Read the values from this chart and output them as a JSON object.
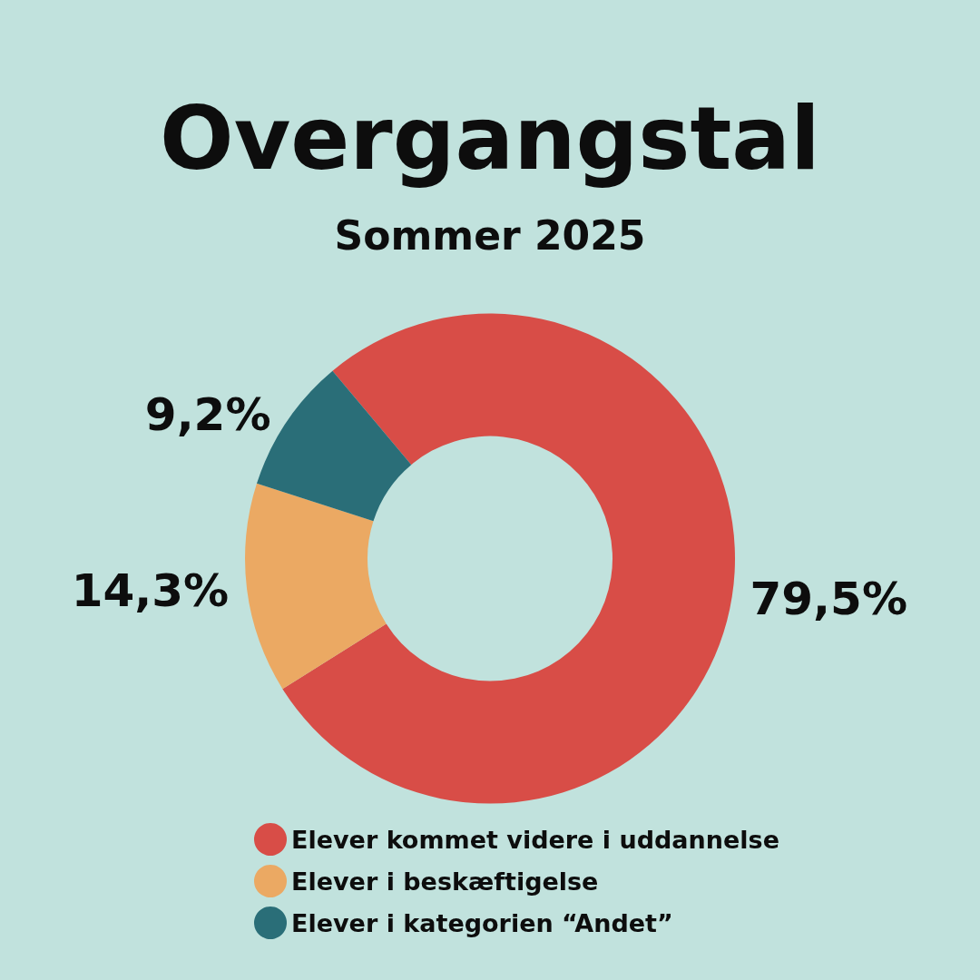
{
  "chart_data": {
    "type": "donut",
    "title": "Overgangstal",
    "subtitle": "Sommer 2025",
    "categories": [
      "Elever kommet videre i uddannelse",
      "Elever i beskæftigelse",
      "Elever i kategorien “Andet”"
    ],
    "values": [
      79.5,
      14.3,
      9.2
    ],
    "value_labels": [
      "79,5%",
      "14,3%",
      "9,2%"
    ],
    "colors": [
      "#d84d47",
      "#eba963",
      "#2a6e78"
    ],
    "legend": "bottom"
  }
}
